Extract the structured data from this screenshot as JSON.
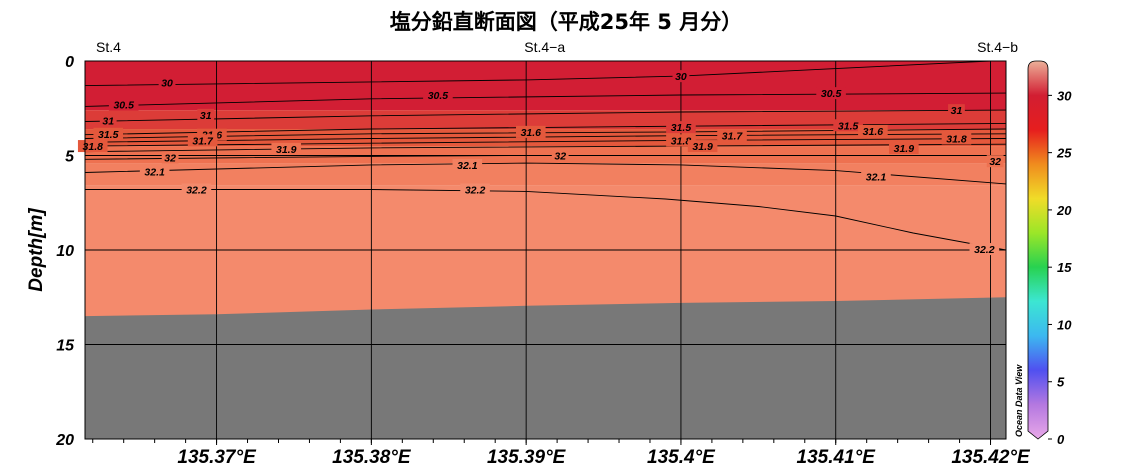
{
  "title": "塩分鉛直断面図（平成25年 5 月分）",
  "watermark": "Ocean Data View",
  "chart_data": {
    "type": "heatmap",
    "variable": "塩分",
    "ylabel": "Depth[m]",
    "xlabel": "",
    "y_axis_inverted": true,
    "ylim": [
      0,
      20
    ],
    "yticks": [
      "0",
      "5",
      "10",
      "15",
      "20"
    ],
    "xlim": [
      135.3615,
      135.421
    ],
    "xticks": [
      {
        "value": 135.37,
        "label": "135.37°E"
      },
      {
        "value": 135.38,
        "label": "135.38°E"
      },
      {
        "value": 135.39,
        "label": "135.39°E"
      },
      {
        "value": 135.4,
        "label": "135.4°E"
      },
      {
        "value": 135.41,
        "label": "135.41°E"
      },
      {
        "value": 135.42,
        "label": "135.42°E"
      }
    ],
    "stations": [
      {
        "name": "St.4",
        "lon": 135.3615
      },
      {
        "name": "St.4−a",
        "lon": 135.3912
      },
      {
        "name": "St.4−b",
        "lon": 135.421
      }
    ],
    "colorbar": {
      "min": 0,
      "max": 33,
      "ticks": [
        "0",
        "5",
        "10",
        "15",
        "20",
        "25",
        "30"
      ],
      "colors": [
        "#e8a8e8",
        "#b478e0",
        "#5050f0",
        "#3cb8f0",
        "#3ce6d2",
        "#28d250",
        "#9be628",
        "#f0dc28",
        "#f08c1e",
        "#e61e1e",
        "#d21e32",
        "#ecb098"
      ]
    },
    "grid": true,
    "fill_bands": [
      {
        "from": 0,
        "to": 2.6,
        "color": "#d21e34"
      },
      {
        "from": 2.6,
        "to": 3.6,
        "color": "#dc3c38"
      },
      {
        "from": 3.6,
        "to": 4.5,
        "color": "#e4583c"
      },
      {
        "from": 4.5,
        "to": 5.4,
        "color": "#ee7150"
      },
      {
        "from": 5.4,
        "to": 6.6,
        "color": "#f28060"
      },
      {
        "from": 6.6,
        "to": 20,
        "color": "#f48a6c"
      }
    ],
    "bottom": {
      "color": "#787878",
      "x": [
        135.3615,
        135.37,
        135.38,
        135.39,
        135.4,
        135.41,
        135.421
      ],
      "y": [
        13.5,
        13.4,
        13.15,
        12.95,
        12.8,
        12.7,
        12.5
      ]
    },
    "contours": [
      {
        "level": "30",
        "x": [
          135.3615,
          135.39,
          135.4,
          135.41,
          135.42
        ],
        "y": [
          1.3,
          1.0,
          0.8,
          0.4,
          0.0
        ],
        "labels": [
          {
            "x": 135.3668,
            "y": 1.15
          },
          {
            "x": 135.4,
            "y": 0.8
          }
        ]
      },
      {
        "level": "30.5",
        "x": [
          135.3615,
          135.38,
          135.4,
          135.421
        ],
        "y": [
          2.4,
          2.0,
          1.8,
          1.7
        ],
        "labels": [
          {
            "x": 135.364,
            "y": 2.3
          },
          {
            "x": 135.3843,
            "y": 1.8
          },
          {
            "x": 135.4097,
            "y": 1.7
          }
        ]
      },
      {
        "level": "31",
        "x": [
          135.3615,
          135.38,
          135.4,
          135.421
        ],
        "y": [
          3.2,
          2.9,
          2.7,
          2.6
        ],
        "labels": [
          {
            "x": 135.363,
            "y": 3.15
          },
          {
            "x": 135.3693,
            "y": 2.85
          },
          {
            "x": 135.4178,
            "y": 2.6
          }
        ]
      },
      {
        "level": "31.5",
        "x": [
          135.3615,
          135.38,
          135.4,
          135.421
        ],
        "y": [
          3.9,
          3.6,
          3.45,
          3.3
        ],
        "labels": [
          {
            "x": 135.363,
            "y": 3.85
          },
          {
            "x": 135.4,
            "y": 3.5
          },
          {
            "x": 135.4108,
            "y": 3.4
          }
        ]
      },
      {
        "level": "31.6",
        "x": [
          135.3615,
          135.38,
          135.4,
          135.421
        ],
        "y": [
          4.1,
          3.85,
          3.75,
          3.6
        ],
        "labels": [
          {
            "x": 135.3697,
            "y": 3.9
          },
          {
            "x": 135.3903,
            "y": 3.75
          },
          {
            "x": 135.4124,
            "y": 3.7
          }
        ]
      },
      {
        "level": "31.7",
        "x": [
          135.3615,
          135.38,
          135.4,
          135.421
        ],
        "y": [
          4.3,
          4.1,
          3.95,
          3.85
        ],
        "labels": [
          {
            "x": 135.3691,
            "y": 4.2
          },
          {
            "x": 135.4033,
            "y": 3.95
          }
        ]
      },
      {
        "level": "31.8",
        "x": [
          135.3615,
          135.38,
          135.4,
          135.421
        ],
        "y": [
          4.5,
          4.35,
          4.2,
          4.1
        ],
        "labels": [
          {
            "x": 135.362,
            "y": 4.5
          },
          {
            "x": 135.4,
            "y": 4.2
          },
          {
            "x": 135.4178,
            "y": 4.1
          }
        ]
      },
      {
        "level": "31.9",
        "x": [
          135.3615,
          135.38,
          135.4,
          135.421
        ],
        "y": [
          4.8,
          4.6,
          4.5,
          4.4
        ],
        "labels": [
          {
            "x": 135.3745,
            "y": 4.65
          },
          {
            "x": 135.4014,
            "y": 4.5
          },
          {
            "x": 135.4144,
            "y": 4.6
          }
        ]
      },
      {
        "level": "32",
        "x": [
          135.3615,
          135.38,
          135.39,
          135.4,
          135.41,
          135.421
        ],
        "y": [
          5.2,
          5.05,
          5.0,
          5.0,
          5.0,
          5.0
        ],
        "labels": [
          {
            "x": 135.367,
            "y": 5.1
          },
          {
            "x": 135.3922,
            "y": 5.0
          },
          {
            "x": 135.4203,
            "y": 5.3
          }
        ]
      },
      {
        "level": "32.1",
        "x": [
          135.3615,
          135.38,
          135.39,
          135.4,
          135.41,
          135.421
        ],
        "y": [
          5.9,
          5.5,
          5.4,
          5.5,
          5.8,
          6.5
        ],
        "labels": [
          {
            "x": 135.366,
            "y": 5.85
          },
          {
            "x": 135.3862,
            "y": 5.5
          },
          {
            "x": 135.4126,
            "y": 6.1
          }
        ]
      },
      {
        "level": "32.2",
        "x": [
          135.3615,
          135.38,
          135.39,
          135.399,
          135.405,
          135.41,
          135.415,
          135.421
        ],
        "y": [
          6.8,
          6.8,
          6.9,
          7.3,
          7.7,
          8.2,
          9.1,
          10.0
        ],
        "labels": [
          {
            "x": 135.3687,
            "y": 6.8
          },
          {
            "x": 135.3867,
            "y": 6.8
          },
          {
            "x": 135.4196,
            "y": 9.95
          }
        ]
      }
    ]
  }
}
